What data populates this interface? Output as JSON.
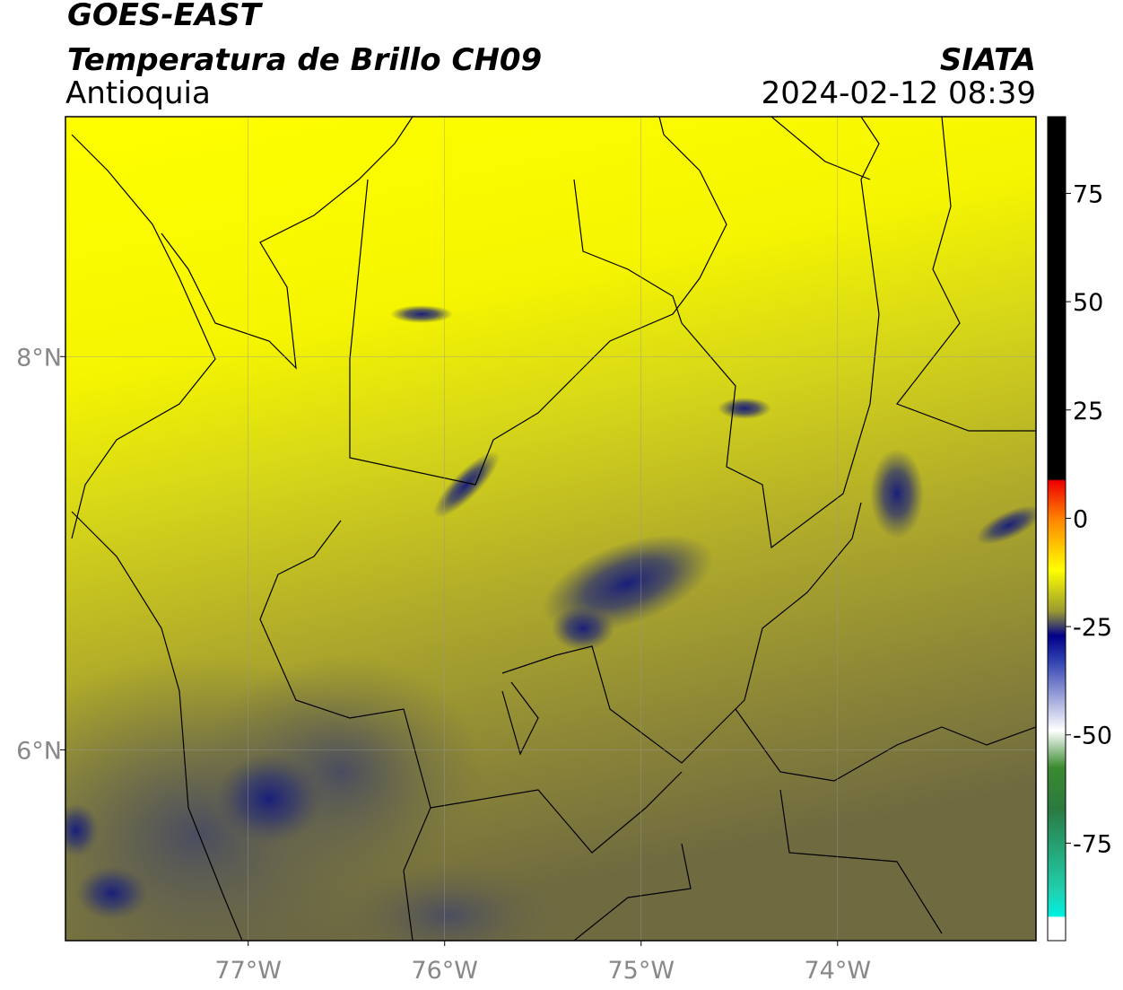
{
  "header": {
    "title": "GOES-EAST",
    "subtitle": "Temperatura de Brillo CH09",
    "source": "SIATA",
    "region": "Antioquia",
    "datetime": "2024-02-12 08:39"
  },
  "map": {
    "xlim": [
      -77.93,
      -72.99
    ],
    "ylim": [
      5.03,
      9.22
    ],
    "xticks": [
      {
        "value": -77,
        "label": "77°W"
      },
      {
        "value": -76,
        "label": "76°W"
      },
      {
        "value": -75,
        "label": "75°W"
      },
      {
        "value": -74,
        "label": "74°W"
      }
    ],
    "yticks": [
      {
        "value": 8,
        "label": "8°N"
      },
      {
        "value": 6,
        "label": "6°N"
      }
    ],
    "grid": true
  },
  "colorbar": {
    "lim": [
      -97.5,
      92.7
    ],
    "ticks": [
      75,
      50,
      25,
      0,
      -25,
      -50,
      -75
    ]
  }
}
